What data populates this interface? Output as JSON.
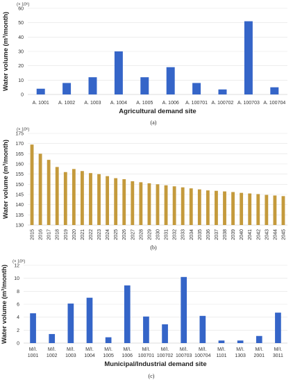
{
  "colors": {
    "blue": "#3565c8",
    "tan": "#c49a3c",
    "grid": "#e2e2e2"
  },
  "chart_data": [
    {
      "type": "bar",
      "panel_label": "(a)",
      "scale_note": "(× 10⁶)",
      "xlabel": "Agricultural demand site",
      "ylabel": "Water volume (m³/month)",
      "ylim": [
        0,
        60
      ],
      "yticks": [
        0,
        10,
        20,
        30,
        40,
        50,
        60
      ],
      "grid": true,
      "categories": [
        "A. 1001",
        "A. 1002",
        "A. 1003",
        "A. 1004",
        "A. 1005",
        "A. 1006",
        "A. 100701",
        "A. 100702",
        "A. 100703",
        "A. 100704"
      ],
      "values": [
        4,
        8,
        12,
        30,
        12,
        19,
        8,
        3.5,
        51,
        5
      ],
      "color": "#3565c8"
    },
    {
      "type": "bar",
      "panel_label": "(b)",
      "scale_note": "(× 10⁶)",
      "xlabel": "",
      "ylabel": "Water volume (m³/month)",
      "ylim": [
        130,
        175
      ],
      "yticks": [
        130,
        135,
        140,
        145,
        150,
        155,
        160,
        165,
        170,
        175
      ],
      "grid": true,
      "categories": [
        "2015",
        "2016",
        "2017",
        "2018",
        "2019",
        "2020",
        "2021",
        "2022",
        "2023",
        "2024",
        "2025",
        "2026",
        "2027",
        "2028",
        "2029",
        "2030",
        "2031",
        "2032",
        "2033",
        "2034",
        "2035",
        "2036",
        "2037",
        "2038",
        "2039",
        "2040",
        "2041",
        "2042",
        "2043",
        "2044",
        "2045"
      ],
      "values": [
        169.5,
        165,
        162,
        158.5,
        156,
        157.5,
        156.5,
        155.5,
        155,
        154,
        153,
        152.5,
        151.5,
        151,
        150.5,
        150,
        149.5,
        149,
        148.5,
        148,
        147.5,
        147,
        146.8,
        146.5,
        146.2,
        145.8,
        145.5,
        145.2,
        144.8,
        144.5,
        144.2
      ],
      "color": "#c49a3c"
    },
    {
      "type": "bar",
      "panel_label": "(c)",
      "scale_note": "(× 10⁶)",
      "xlabel": "Municipal/Industrial demand site",
      "ylabel": "Water volume (m³/month)",
      "ylim": [
        0,
        12
      ],
      "yticks": [
        0,
        2,
        4,
        6,
        8,
        10,
        12
      ],
      "grid": true,
      "categories": [
        "M/I. 1001",
        "M/I. 1002",
        "M/I. 1003",
        "M/I. 1004",
        "M/I. 1005",
        "M/I. 1006",
        "M/I. 100701",
        "M/I. 100702",
        "M/I. 100703",
        "M/I. 100704",
        "M/I. 1101",
        "M/I. 1303",
        "M/I. 2001",
        "M/I. 3011"
      ],
      "values": [
        4.6,
        1.4,
        6.1,
        7.0,
        0.9,
        8.9,
        4.1,
        2.9,
        10.2,
        4.2,
        0.4,
        0.4,
        1.1,
        4.7
      ],
      "color": "#3565c8"
    }
  ]
}
